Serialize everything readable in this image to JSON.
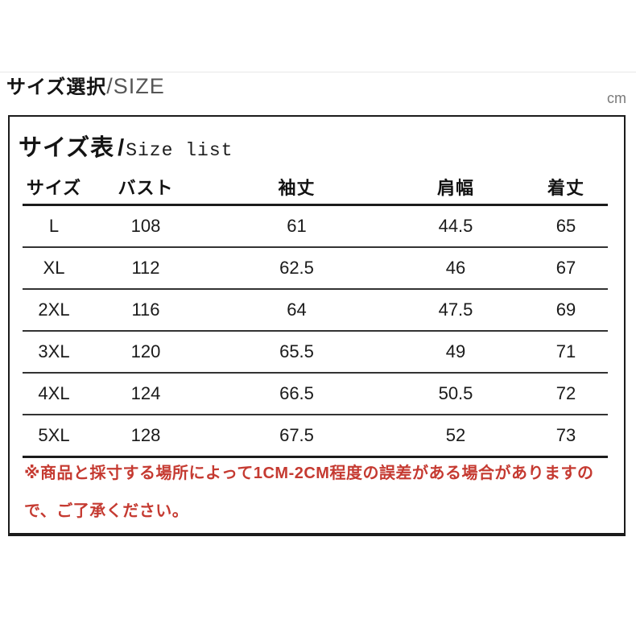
{
  "header": {
    "title_jp": "サイズ選択",
    "title_en": "/SIZE",
    "unit": "cm"
  },
  "panel": {
    "title_jp": "サイズ表",
    "title_sep": "/",
    "title_en": "Size list",
    "table": {
      "columns": [
        "サイズ",
        "バスト",
        "袖丈",
        "肩幅",
        "着丈"
      ],
      "rows": [
        [
          "L",
          "108",
          "61",
          "44.5",
          "65"
        ],
        [
          "XL",
          "112",
          "62.5",
          "46",
          "67"
        ],
        [
          "2XL",
          "116",
          "64",
          "47.5",
          "69"
        ],
        [
          "3XL",
          "120",
          "65.5",
          "49",
          "71"
        ],
        [
          "4XL",
          "124",
          "66.5",
          "50.5",
          "72"
        ],
        [
          "5XL",
          "128",
          "67.5",
          "52",
          "73"
        ]
      ]
    },
    "note": "※商品と採寸する場所によって1CM-2CM程度の誤差がある場合がありますので、ご了承ください。"
  },
  "colors": {
    "note_red": "#c53a31",
    "table_line_dark": "#1c1c1c",
    "table_line_mid": "#333333",
    "divider_gray": "#e7e7e7",
    "muted_gray": "#7a7a7a"
  }
}
